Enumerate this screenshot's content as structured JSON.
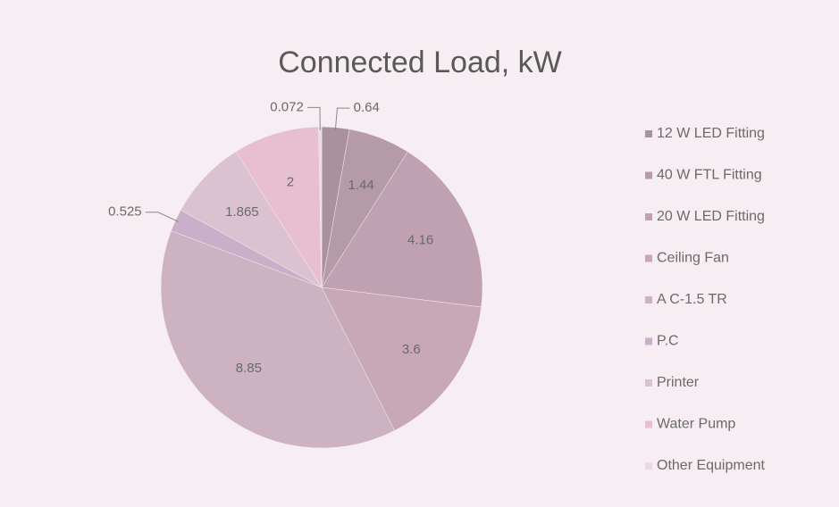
{
  "chart_data": {
    "type": "pie",
    "title": "Connected Load, kW",
    "categories": [
      "12 W LED Fitting",
      "40 W FTL Fitting",
      "20 W LED Fitting",
      "Ceiling Fan",
      "A C-1.5 TR",
      "P.C",
      "Printer",
      "Water Pump",
      "Other Equipment"
    ],
    "values": [
      0.64,
      1.44,
      4.16,
      3.6,
      8.85,
      0.525,
      1.865,
      2,
      0.072
    ],
    "colors": [
      "#a9929e",
      "#b59aa8",
      "#c0a1b1",
      "#c8a7b7",
      "#cdb3c1",
      "#c9afc9",
      "#dcc2d0",
      "#e7bfcf",
      "#eed8e2"
    ],
    "legend": "right"
  }
}
